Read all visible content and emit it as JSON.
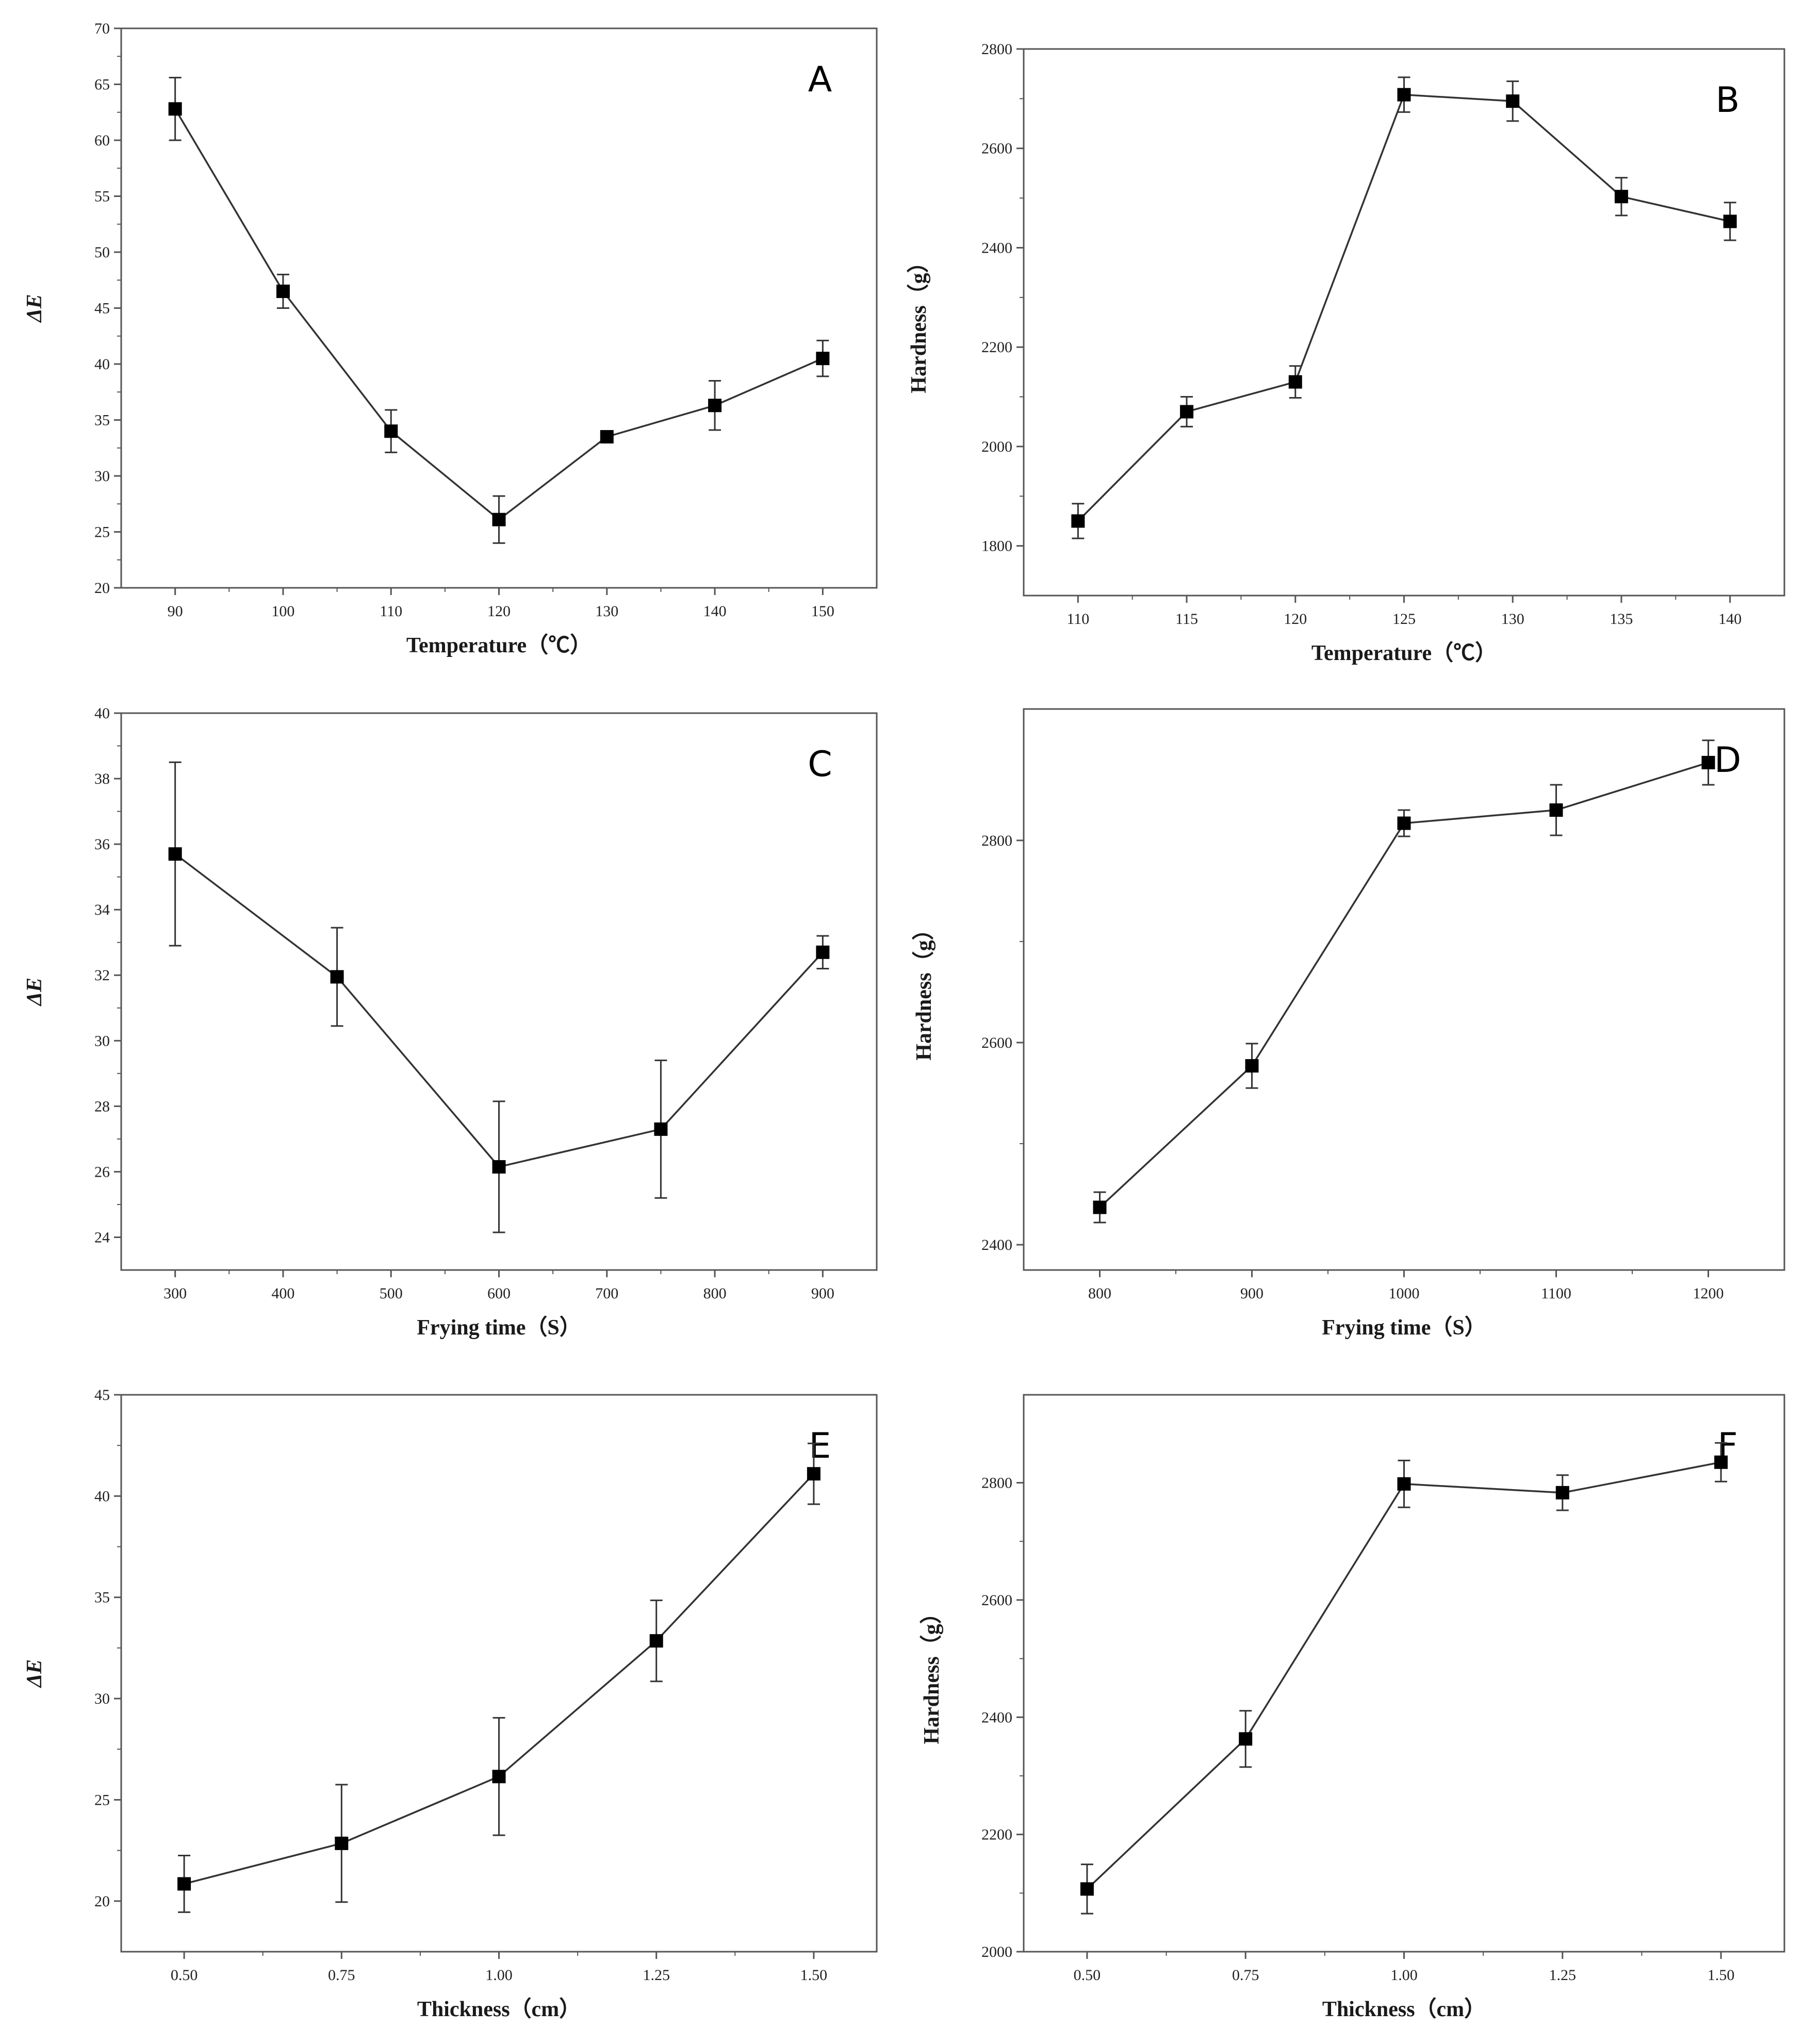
{
  "colors": {
    "line": "#333333",
    "marker": "#000000",
    "axis": "#555555",
    "background": "#ffffff"
  },
  "chart_data": [
    {
      "panel": "A",
      "type": "line",
      "title": "",
      "xlabel": "Temperature（℃）",
      "ylabel": "ΔE",
      "xlim": [
        85,
        155
      ],
      "ylim": [
        20,
        70
      ],
      "xticks": [
        90,
        100,
        110,
        120,
        130,
        140,
        150
      ],
      "yticks": [
        20,
        25,
        30,
        35,
        40,
        45,
        50,
        55,
        60,
        65,
        70
      ],
      "x": [
        90,
        100,
        110,
        120,
        130,
        140,
        150
      ],
      "values": [
        62.8,
        46.5,
        34.0,
        26.1,
        33.5,
        36.3,
        40.5
      ],
      "errors": [
        2.8,
        1.5,
        1.9,
        2.1,
        0.3,
        2.2,
        1.6
      ],
      "grid": false
    },
    {
      "panel": "B",
      "type": "line",
      "title": "",
      "xlabel": "Temperature（℃）",
      "ylabel": "Hardness（g）",
      "xlim": [
        107.5,
        142.5
      ],
      "ylim": [
        1700,
        2800
      ],
      "xticks": [
        110,
        115,
        120,
        125,
        130,
        135,
        140
      ],
      "yticks": [
        1800,
        2000,
        2200,
        2400,
        2600,
        2800
      ],
      "x": [
        110,
        115,
        120,
        125,
        130,
        135,
        140
      ],
      "values": [
        1850,
        2070,
        2130,
        2708,
        2695,
        2503,
        2453
      ],
      "errors": [
        35,
        30,
        32,
        35,
        40,
        38,
        38
      ],
      "grid": false
    },
    {
      "panel": "C",
      "type": "line",
      "title": "",
      "xlabel": "Frying time（S）",
      "ylabel": "ΔE",
      "xlim": [
        250,
        950
      ],
      "ylim": [
        23,
        40
      ],
      "xticks": [
        300,
        400,
        500,
        600,
        700,
        800,
        900
      ],
      "yticks": [
        24,
        26,
        28,
        30,
        32,
        34,
        36,
        38,
        40
      ],
      "x": [
        300,
        450,
        600,
        750,
        900
      ],
      "values": [
        35.7,
        31.95,
        26.15,
        27.3,
        32.7
      ],
      "errors": [
        2.8,
        1.5,
        2.0,
        2.1,
        0.5
      ],
      "grid": false
    },
    {
      "panel": "D",
      "type": "line",
      "title": "",
      "xlabel": "Frying time（S）",
      "ylabel": "Hardness（g）",
      "xlim": [
        750,
        1250
      ],
      "ylim": [
        2375,
        2930
      ],
      "xticks": [
        800,
        900,
        1000,
        1100,
        1200
      ],
      "yticks": [
        2400,
        2600,
        2800
      ],
      "x": [
        800,
        900,
        1000,
        1100,
        1200
      ],
      "values": [
        2437,
        2577,
        2817,
        2830,
        2877
      ],
      "errors": [
        15,
        22,
        13,
        25,
        22
      ],
      "grid": false
    },
    {
      "panel": "E",
      "type": "line",
      "title": "",
      "xlabel": "Thickness（cm）",
      "ylabel": "ΔE",
      "xlim": [
        0.4,
        1.6
      ],
      "ylim": [
        17.5,
        45
      ],
      "xticks": [
        "0.50",
        "0.75",
        "1.00",
        "1.25",
        "1.50"
      ],
      "yticks": [
        20,
        25,
        30,
        35,
        40,
        45
      ],
      "x": [
        0.5,
        0.75,
        1.0,
        1.25,
        1.5
      ],
      "values": [
        20.85,
        22.85,
        26.15,
        32.85,
        41.1
      ],
      "errors": [
        1.4,
        2.9,
        2.9,
        2.0,
        1.5
      ],
      "grid": false
    },
    {
      "panel": "F",
      "type": "line",
      "title": "",
      "xlabel": "Thickness（cm）",
      "ylabel": "Hardness（g）",
      "xlim": [
        0.4,
        1.6
      ],
      "ylim": [
        2000,
        2950
      ],
      "xticks": [
        "0.50",
        "0.75",
        "1.00",
        "1.25",
        "1.50"
      ],
      "yticks": [
        2000,
        2200,
        2400,
        2600,
        2800
      ],
      "x": [
        0.5,
        0.75,
        1.0,
        1.25,
        1.5
      ],
      "values": [
        2107,
        2363,
        2798,
        2783,
        2835
      ],
      "errors": [
        42,
        48,
        40,
        30,
        33
      ],
      "grid": false
    }
  ]
}
